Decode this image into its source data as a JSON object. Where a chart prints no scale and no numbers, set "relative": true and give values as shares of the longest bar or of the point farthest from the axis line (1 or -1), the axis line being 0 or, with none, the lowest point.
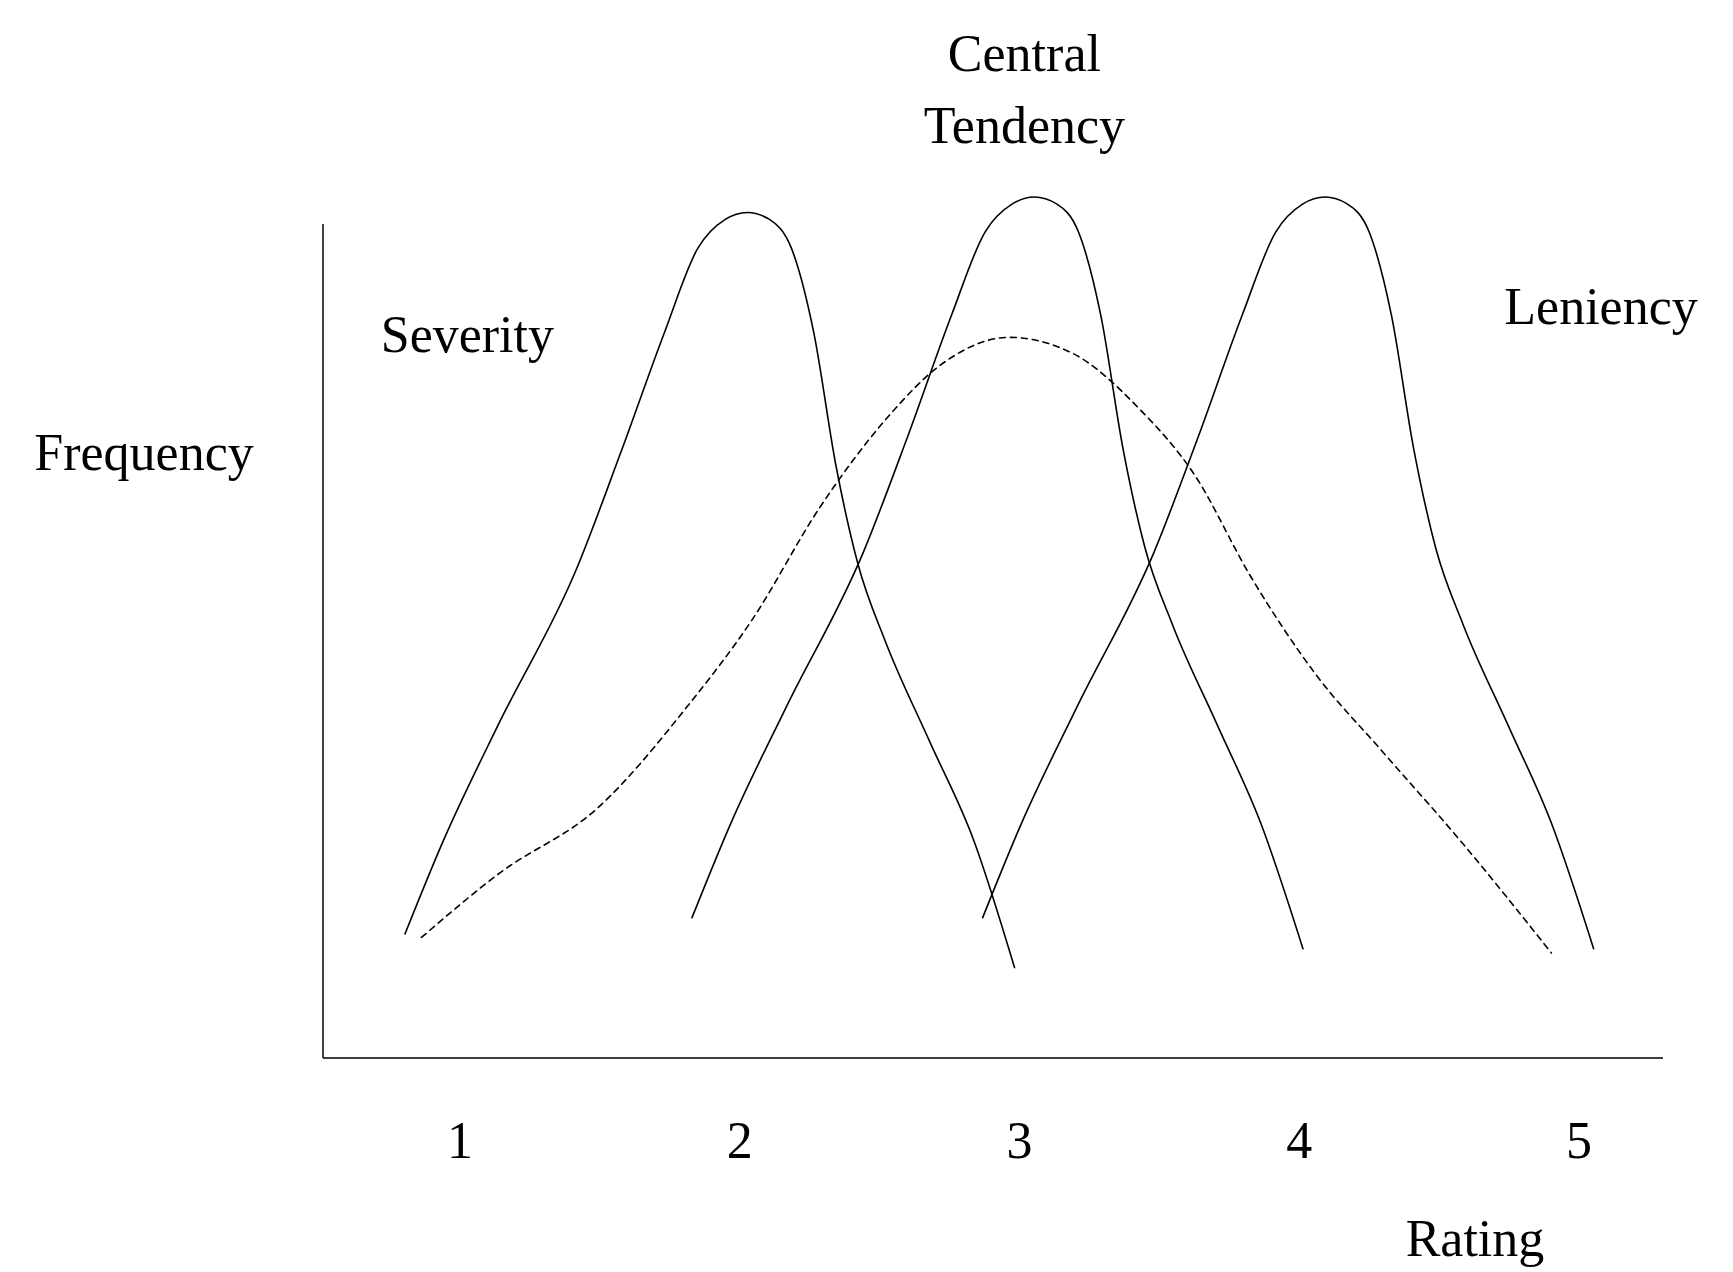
{
  "chart_data": {
    "type": "line",
    "relative": true,
    "xlabel": "Rating",
    "ylabel": "Frequency",
    "xlim": [
      0.51,
      5.3
    ],
    "xticks": [
      1,
      2,
      3,
      4,
      5
    ],
    "grid": false,
    "marker": "none",
    "series": [
      {
        "name": "Severity",
        "color": "#000000",
        "line_style": "solid",
        "x": [
          0.803,
          0.941,
          1.138,
          1.415,
          1.573,
          1.731,
          1.849,
          1.948,
          2.027,
          2.106,
          2.185,
          2.264,
          2.343,
          2.422,
          2.52,
          2.678,
          2.836,
          2.982
        ],
        "values": [
          0.144,
          0.253,
          0.388,
          0.567,
          0.702,
          0.843,
          0.94,
          0.974,
          0.982,
          0.974,
          0.94,
          0.843,
          0.689,
          0.574,
          0.484,
          0.368,
          0.253,
          0.105
        ]
      },
      {
        "name": "Central Tendency",
        "color": "#000000",
        "line_style": "solid",
        "x": [
          1.829,
          1.967,
          2.165,
          2.441,
          2.599,
          2.757,
          2.876,
          2.974,
          3.053,
          3.132,
          3.211,
          3.29,
          3.369,
          3.448,
          3.547,
          3.705,
          3.863,
          4.013
        ],
        "values": [
          0.163,
          0.272,
          0.407,
          0.587,
          0.721,
          0.863,
          0.959,
          0.992,
          1,
          0.992,
          0.959,
          0.863,
          0.709,
          0.593,
          0.503,
          0.388,
          0.272,
          0.127
        ]
      },
      {
        "name": "Leniency",
        "color": "#000000",
        "line_style": "solid",
        "x": [
          2.868,
          3.006,
          3.204,
          3.48,
          3.638,
          3.796,
          3.915,
          4.013,
          4.092,
          4.171,
          4.25,
          4.329,
          4.408,
          4.487,
          4.586,
          4.744,
          4.902,
          5.052
        ],
        "values": [
          0.163,
          0.272,
          0.407,
          0.587,
          0.721,
          0.863,
          0.959,
          0.992,
          1,
          0.992,
          0.959,
          0.863,
          0.709,
          0.593,
          0.503,
          0.388,
          0.272,
          0.127
        ]
      },
      {
        "color": "#000000",
        "line_style": "dashed",
        "x": [
          0.862,
          1.138,
          1.494,
          1.809,
          2.046,
          2.283,
          2.52,
          2.718,
          2.962,
          3.192,
          3.428,
          3.626,
          3.823,
          4.06,
          4.297,
          4.574,
          4.901
        ],
        "values": [
          0.14,
          0.214,
          0.291,
          0.407,
          0.51,
          0.638,
          0.741,
          0.805,
          0.837,
          0.818,
          0.754,
          0.677,
          0.561,
          0.445,
          0.356,
          0.253,
          0.122
        ]
      }
    ]
  }
}
